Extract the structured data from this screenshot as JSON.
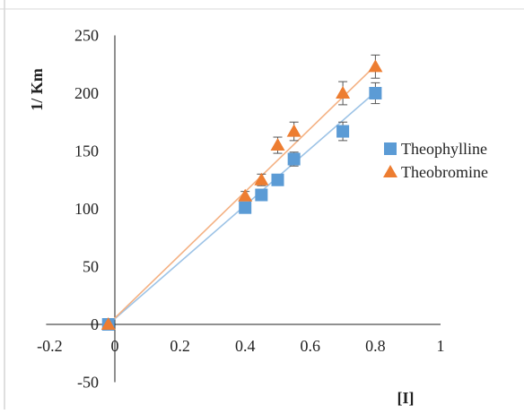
{
  "chart_data": {
    "type": "scatter",
    "ylabel": "1/ Km",
    "xlabel": "[I]",
    "xlim": [
      -0.2,
      1
    ],
    "ylim": [
      -50,
      250
    ],
    "x_ticks": [
      "-0.2",
      "0",
      "0.2",
      "0.4",
      "0.6",
      "0.8",
      "1"
    ],
    "y_ticks": [
      "-50",
      "0",
      "50",
      "100",
      "150",
      "200",
      "250"
    ],
    "grid": false,
    "legend_position": "right",
    "series": [
      {
        "name": "Theophylline",
        "marker": "square",
        "color": "#5b9bd5",
        "trendline_color": "#9dc3e6",
        "points": [
          {
            "x": -0.02,
            "y": 0,
            "err": 0
          },
          {
            "x": 0.4,
            "y": 101,
            "err": 3
          },
          {
            "x": 0.45,
            "y": 112,
            "err": 3
          },
          {
            "x": 0.5,
            "y": 125,
            "err": 4
          },
          {
            "x": 0.55,
            "y": 143,
            "err": 6
          },
          {
            "x": 0.7,
            "y": 167,
            "err": 8
          },
          {
            "x": 0.8,
            "y": 200,
            "err": 9
          }
        ],
        "trendline": [
          [
            -0.02,
            0
          ],
          [
            0.8,
            201
          ]
        ]
      },
      {
        "name": "Theobromine",
        "marker": "triangle",
        "color": "#ed7d31",
        "trendline_color": "#f4b183",
        "points": [
          {
            "x": -0.02,
            "y": 0,
            "err": 0
          },
          {
            "x": 0.4,
            "y": 111,
            "err": 4
          },
          {
            "x": 0.45,
            "y": 125,
            "err": 5
          },
          {
            "x": 0.5,
            "y": 155,
            "err": 7
          },
          {
            "x": 0.55,
            "y": 167,
            "err": 8
          },
          {
            "x": 0.7,
            "y": 200,
            "err": 10
          },
          {
            "x": 0.8,
            "y": 223,
            "err": 10
          }
        ],
        "trendline": [
          [
            -0.02,
            0
          ],
          [
            0.8,
            224
          ]
        ]
      }
    ]
  }
}
